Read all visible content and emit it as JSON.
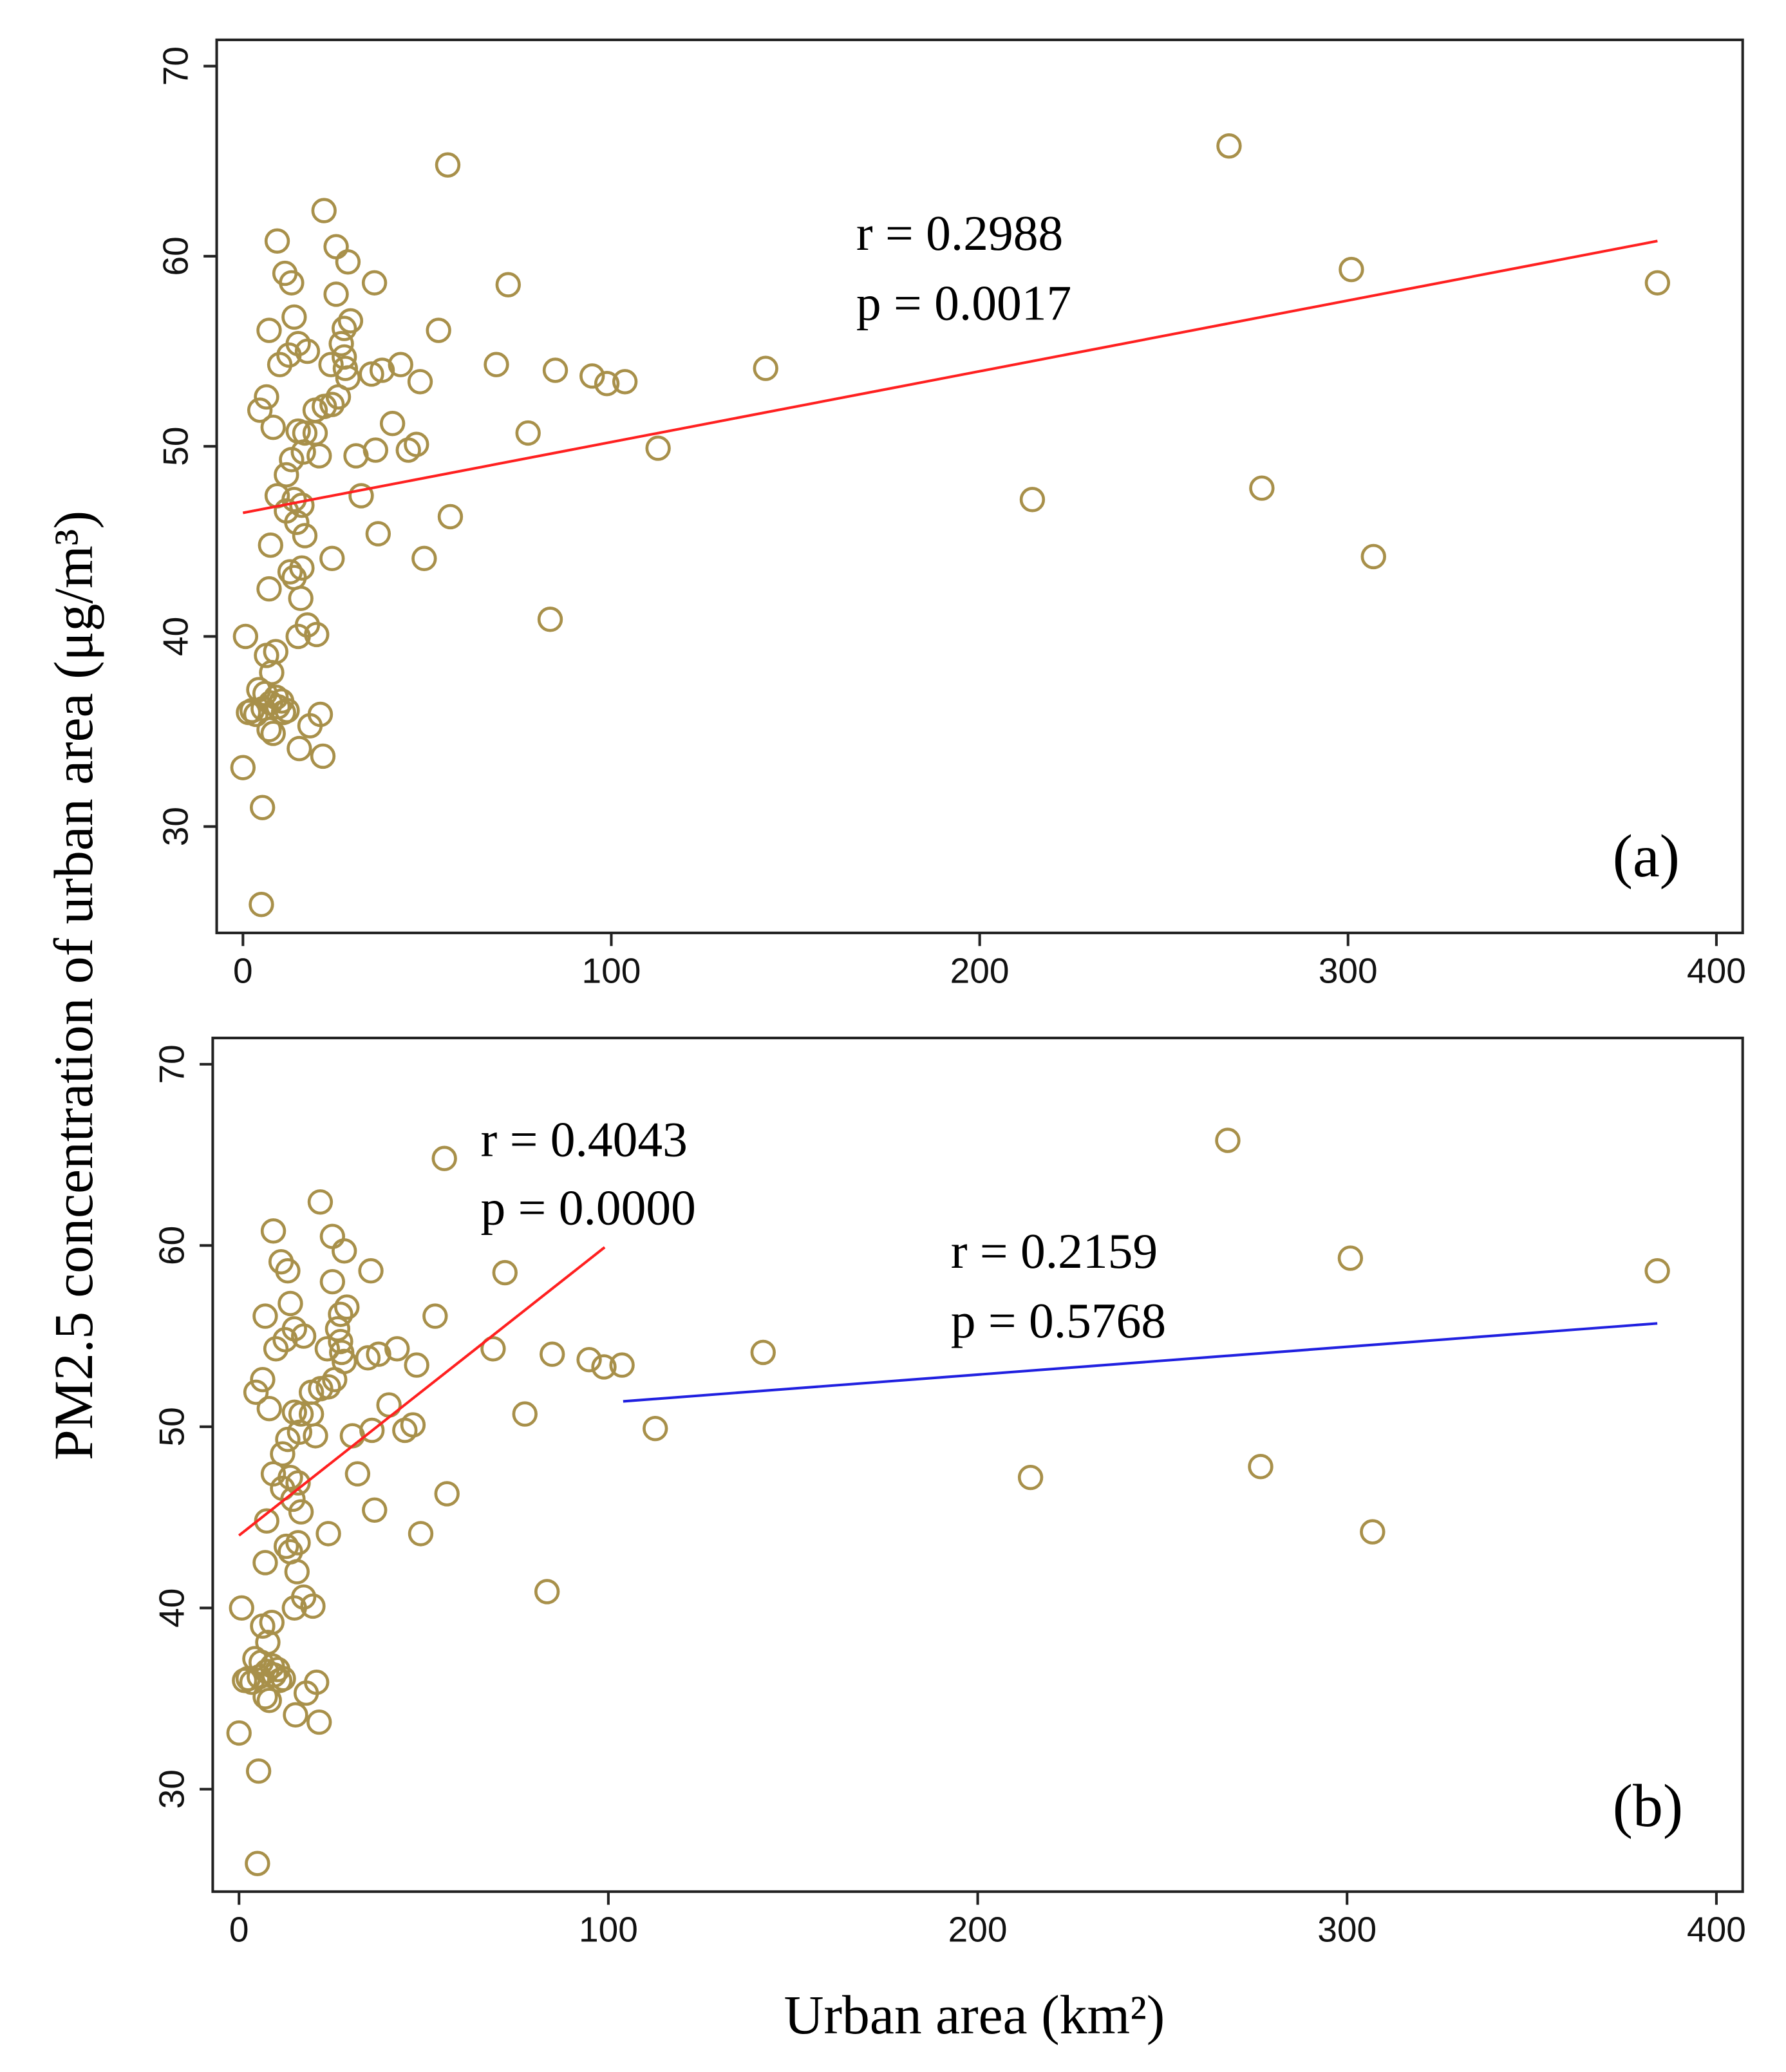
{
  "colors": {
    "marker": "#a8904a",
    "fit_a": "#ff2020",
    "fit_b_low": "#ff2020",
    "fit_b_high": "#2020e0"
  },
  "chart_data": [
    {
      "type": "scatter",
      "panel_label": "(a)",
      "xlabel": "",
      "ylabel": "",
      "xlim": [
        0,
        400
      ],
      "ylim": [
        25,
        70
      ],
      "xticks": [
        "0",
        "100",
        "200",
        "300",
        "400"
      ],
      "yticks": [
        "30",
        "40",
        "50",
        "60",
        "70"
      ],
      "fit_lines": [
        {
          "x": [
            0,
            384
          ],
          "y": [
            46.5,
            60.8
          ],
          "color": "red"
        }
      ],
      "annotations": [
        {
          "r": "r = 0.2988",
          "p": "p = 0.0017"
        }
      ]
    },
    {
      "type": "scatter",
      "panel_label": "(b)",
      "xlabel": "Urban area (km²)",
      "ylabel": "PM2.5 concentration of urban area (μg/m³)",
      "xlim": [
        0,
        400
      ],
      "ylim": [
        25,
        70
      ],
      "xticks": [
        "0",
        "100",
        "200",
        "300",
        "400"
      ],
      "yticks": [
        "30",
        "40",
        "50",
        "60",
        "70"
      ],
      "fit_lines": [
        {
          "x": [
            0,
            99
          ],
          "y": [
            44,
            59.9
          ],
          "color": "red"
        },
        {
          "x": [
            104,
            384
          ],
          "y": [
            51.4,
            55.7
          ],
          "color": "blue"
        }
      ],
      "annotations": [
        {
          "r": "r = 0.4043",
          "p": "p = 0.0000"
        },
        {
          "r": "r = 0.2159",
          "p": "p = 0.5768"
        }
      ]
    }
  ],
  "points": [
    [
      0,
      33.1
    ],
    [
      0.7,
      40
    ],
    [
      1.5,
      36
    ],
    [
      2.5,
      36.1
    ],
    [
      3.5,
      35.9
    ],
    [
      5.3,
      31
    ],
    [
      5,
      25.9
    ],
    [
      4.6,
      51.9
    ],
    [
      6.4,
      52.6
    ],
    [
      7.1,
      56.1
    ],
    [
      7.5,
      44.8
    ],
    [
      7.1,
      42.5
    ],
    [
      6.4,
      39
    ],
    [
      8.9,
      39.2
    ],
    [
      7.8,
      38.1
    ],
    [
      4.3,
      37.2
    ],
    [
      6,
      37
    ],
    [
      7.5,
      36.5
    ],
    [
      9.5,
      36.3
    ],
    [
      11,
      36
    ],
    [
      7.1,
      35.1
    ],
    [
      8.2,
      34.9
    ],
    [
      5.5,
      36.2
    ],
    [
      9,
      36.8
    ],
    [
      10.5,
      36.6
    ],
    [
      12,
      36.1
    ],
    [
      9.3,
      60.8
    ],
    [
      11.4,
      59.1
    ],
    [
      13.2,
      58.6
    ],
    [
      13.9,
      56.8
    ],
    [
      10,
      54.3
    ],
    [
      12.5,
      54.8
    ],
    [
      15,
      55.4
    ],
    [
      17.5,
      55
    ],
    [
      8.2,
      51
    ],
    [
      9.3,
      47.4
    ],
    [
      11.8,
      48.5
    ],
    [
      13.2,
      49.3
    ],
    [
      15,
      50.8
    ],
    [
      16.8,
      50.7
    ],
    [
      16.4,
      49.7
    ],
    [
      11.8,
      46.6
    ],
    [
      13.9,
      47.2
    ],
    [
      16,
      46.9
    ],
    [
      14.6,
      46
    ],
    [
      16.8,
      45.3
    ],
    [
      12.8,
      43.4
    ],
    [
      13.9,
      43.1
    ],
    [
      16,
      43.6
    ],
    [
      15.7,
      42
    ],
    [
      15,
      40
    ],
    [
      17.5,
      40.6
    ],
    [
      20,
      40.1
    ],
    [
      15.3,
      34.1
    ],
    [
      18.2,
      35.3
    ],
    [
      21,
      35.9
    ],
    [
      21.7,
      33.7
    ],
    [
      22,
      62.4
    ],
    [
      25.3,
      60.5
    ],
    [
      28.5,
      59.7
    ],
    [
      25.3,
      58
    ],
    [
      35.7,
      58.6
    ],
    [
      27.5,
      56.2
    ],
    [
      29.2,
      56.6
    ],
    [
      26.7,
      55.4
    ],
    [
      27.5,
      54.7
    ],
    [
      27.8,
      54.1
    ],
    [
      23.9,
      54.3
    ],
    [
      28.5,
      53.6
    ],
    [
      25.9,
      52.6
    ],
    [
      19.6,
      51.9
    ],
    [
      22.1,
      52.1
    ],
    [
      24.2,
      52.2
    ],
    [
      19.6,
      50.7
    ],
    [
      20.7,
      49.5
    ],
    [
      24.2,
      44.1
    ],
    [
      30.7,
      49.5
    ],
    [
      36,
      49.8
    ],
    [
      32.1,
      47.4
    ],
    [
      36.7,
      45.4
    ],
    [
      34.9,
      53.8
    ],
    [
      37.8,
      54
    ],
    [
      42.8,
      54.3
    ],
    [
      48.1,
      53.4
    ],
    [
      40.6,
      51.2
    ],
    [
      44.9,
      49.8
    ],
    [
      47.1,
      50.1
    ],
    [
      49.2,
      44.1
    ],
    [
      53.1,
      56.1
    ],
    [
      55.6,
      64.8
    ],
    [
      56.3,
      46.3
    ],
    [
      68.8,
      54.3
    ],
    [
      72,
      58.5
    ],
    [
      77.4,
      50.7
    ],
    [
      83.4,
      40.9
    ],
    [
      84.8,
      54
    ],
    [
      94.8,
      53.7
    ],
    [
      98.8,
      53.3
    ],
    [
      103.7,
      53.4
    ],
    [
      112.7,
      49.9
    ],
    [
      141.9,
      54.1
    ],
    [
      214.3,
      47.2
    ],
    [
      267.7,
      65.8
    ],
    [
      276.6,
      47.8
    ],
    [
      300.9,
      59.3
    ],
    [
      306.9,
      44.2
    ],
    [
      384,
      58.6
    ]
  ]
}
